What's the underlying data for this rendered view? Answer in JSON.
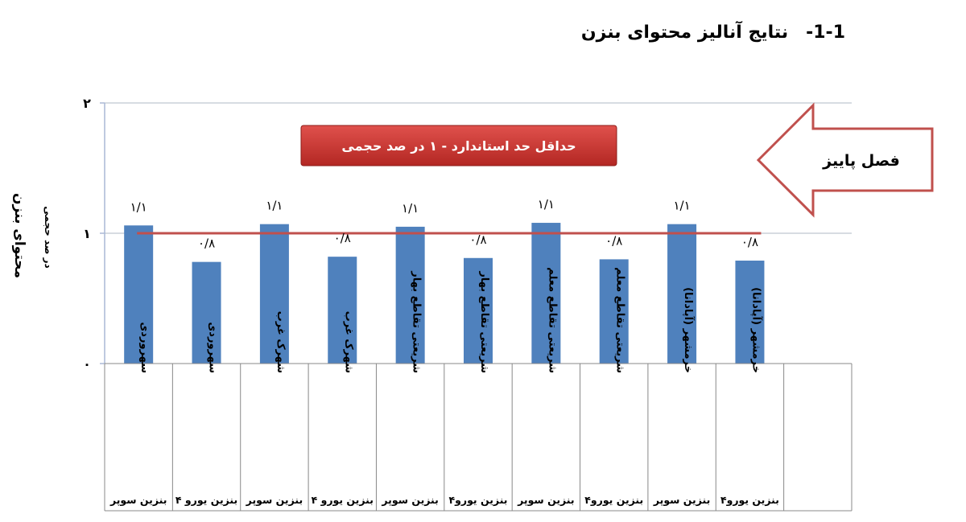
{
  "heading": {
    "number": "1-1-",
    "title": "نتایج آنالیز محتوای بنزن"
  },
  "callouts": {
    "standard_box": "حداقل حد استاندارد - ۱ در صد حجمی",
    "season_arrow": "فصل پاییز"
  },
  "colors": {
    "bar": "#4f81bd",
    "standard_line": "#c0504d",
    "standard_box_fill": "#c9302c",
    "arrow_stroke": "#c0504d",
    "grid": "#bfc6d1",
    "axis": "#aab9d6"
  },
  "chart_data": {
    "type": "bar",
    "ylabel": "محتوای بنزن",
    "ylabel_unit": "در صد حجمی",
    "ylim": [
      0,
      2
    ],
    "yticks": [
      "۰",
      "۱",
      "۲"
    ],
    "grid": true,
    "standard_line_value": 1.0,
    "categories": [
      {
        "location": "سهروردی",
        "fuel": "بنزین سوپر"
      },
      {
        "location": "سهروردی",
        "fuel": "بنزین یورو ۴"
      },
      {
        "location": "شهرک غرب",
        "fuel": "بنزین سوپر"
      },
      {
        "location": "شهرک غرب",
        "fuel": "بنزین یورو ۴"
      },
      {
        "location": "شریعتی تقاطع بهار",
        "fuel": "بنزین سوپر"
      },
      {
        "location": "شریعتی تقاطع بهار",
        "fuel": "بنزین یورو۴"
      },
      {
        "location": "شریعتی تقاطع معلم",
        "fuel": "بنزین سوپر"
      },
      {
        "location": "شریعتی تقاطع معلم",
        "fuel": "بنزین یورو۴"
      },
      {
        "location": "خرمشهر (آپادانا)",
        "fuel": "بنزین سوپر"
      },
      {
        "location": "خرمشهر (آپادانا)",
        "fuel": "بنزین یورو۴"
      }
    ],
    "values": [
      1.06,
      0.78,
      1.07,
      0.82,
      1.05,
      0.81,
      1.08,
      0.8,
      1.07,
      0.79
    ],
    "data_labels": [
      "۱/۱",
      "۰/۸",
      "۱/۱",
      "۰/۸",
      "۱/۱",
      "۰/۸",
      "۱/۱",
      "۰/۸",
      "۱/۱",
      "۰/۸"
    ]
  }
}
